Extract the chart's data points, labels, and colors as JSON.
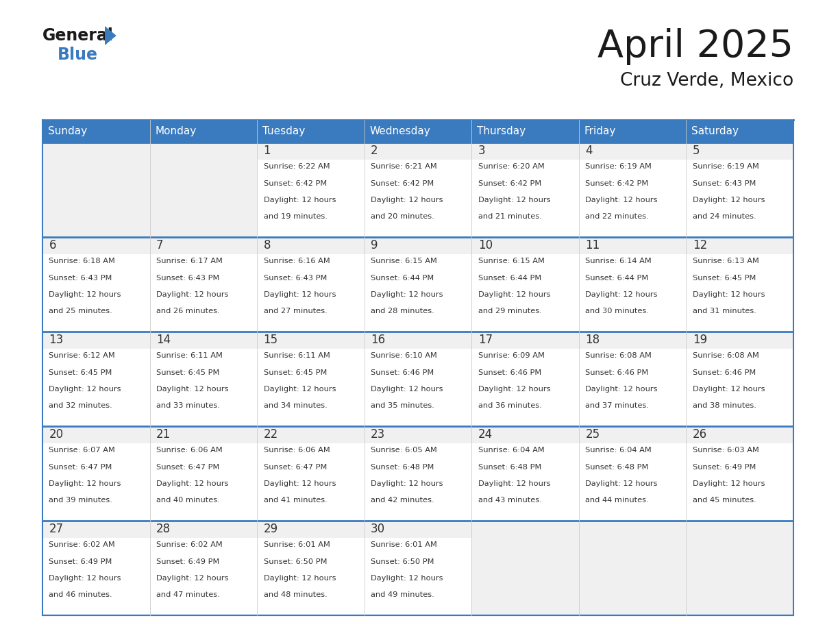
{
  "title": "April 2025",
  "subtitle": "Cruz Verde, Mexico",
  "days_of_week": [
    "Sunday",
    "Monday",
    "Tuesday",
    "Wednesday",
    "Thursday",
    "Friday",
    "Saturday"
  ],
  "header_bg": "#3a7abf",
  "header_text": "#ffffff",
  "cell_bg_gray": "#f0f0f0",
  "cell_bg_white": "#ffffff",
  "border_color": "#3a7abf",
  "grid_line_color": "#cccccc",
  "text_color": "#333333",
  "title_color": "#1a1a1a",
  "logo_black": "#1a1a1a",
  "logo_blue": "#3a7abf",
  "calendar_data": [
    [
      null,
      null,
      {
        "day": 1,
        "sunrise": "6:22 AM",
        "sunset": "6:42 PM",
        "daylight_hours": 12,
        "daylight_minutes": 19
      },
      {
        "day": 2,
        "sunrise": "6:21 AM",
        "sunset": "6:42 PM",
        "daylight_hours": 12,
        "daylight_minutes": 20
      },
      {
        "day": 3,
        "sunrise": "6:20 AM",
        "sunset": "6:42 PM",
        "daylight_hours": 12,
        "daylight_minutes": 21
      },
      {
        "day": 4,
        "sunrise": "6:19 AM",
        "sunset": "6:42 PM",
        "daylight_hours": 12,
        "daylight_minutes": 22
      },
      {
        "day": 5,
        "sunrise": "6:19 AM",
        "sunset": "6:43 PM",
        "daylight_hours": 12,
        "daylight_minutes": 24
      }
    ],
    [
      {
        "day": 6,
        "sunrise": "6:18 AM",
        "sunset": "6:43 PM",
        "daylight_hours": 12,
        "daylight_minutes": 25
      },
      {
        "day": 7,
        "sunrise": "6:17 AM",
        "sunset": "6:43 PM",
        "daylight_hours": 12,
        "daylight_minutes": 26
      },
      {
        "day": 8,
        "sunrise": "6:16 AM",
        "sunset": "6:43 PM",
        "daylight_hours": 12,
        "daylight_minutes": 27
      },
      {
        "day": 9,
        "sunrise": "6:15 AM",
        "sunset": "6:44 PM",
        "daylight_hours": 12,
        "daylight_minutes": 28
      },
      {
        "day": 10,
        "sunrise": "6:15 AM",
        "sunset": "6:44 PM",
        "daylight_hours": 12,
        "daylight_minutes": 29
      },
      {
        "day": 11,
        "sunrise": "6:14 AM",
        "sunset": "6:44 PM",
        "daylight_hours": 12,
        "daylight_minutes": 30
      },
      {
        "day": 12,
        "sunrise": "6:13 AM",
        "sunset": "6:45 PM",
        "daylight_hours": 12,
        "daylight_minutes": 31
      }
    ],
    [
      {
        "day": 13,
        "sunrise": "6:12 AM",
        "sunset": "6:45 PM",
        "daylight_hours": 12,
        "daylight_minutes": 32
      },
      {
        "day": 14,
        "sunrise": "6:11 AM",
        "sunset": "6:45 PM",
        "daylight_hours": 12,
        "daylight_minutes": 33
      },
      {
        "day": 15,
        "sunrise": "6:11 AM",
        "sunset": "6:45 PM",
        "daylight_hours": 12,
        "daylight_minutes": 34
      },
      {
        "day": 16,
        "sunrise": "6:10 AM",
        "sunset": "6:46 PM",
        "daylight_hours": 12,
        "daylight_minutes": 35
      },
      {
        "day": 17,
        "sunrise": "6:09 AM",
        "sunset": "6:46 PM",
        "daylight_hours": 12,
        "daylight_minutes": 36
      },
      {
        "day": 18,
        "sunrise": "6:08 AM",
        "sunset": "6:46 PM",
        "daylight_hours": 12,
        "daylight_minutes": 37
      },
      {
        "day": 19,
        "sunrise": "6:08 AM",
        "sunset": "6:46 PM",
        "daylight_hours": 12,
        "daylight_minutes": 38
      }
    ],
    [
      {
        "day": 20,
        "sunrise": "6:07 AM",
        "sunset": "6:47 PM",
        "daylight_hours": 12,
        "daylight_minutes": 39
      },
      {
        "day": 21,
        "sunrise": "6:06 AM",
        "sunset": "6:47 PM",
        "daylight_hours": 12,
        "daylight_minutes": 40
      },
      {
        "day": 22,
        "sunrise": "6:06 AM",
        "sunset": "6:47 PM",
        "daylight_hours": 12,
        "daylight_minutes": 41
      },
      {
        "day": 23,
        "sunrise": "6:05 AM",
        "sunset": "6:48 PM",
        "daylight_hours": 12,
        "daylight_minutes": 42
      },
      {
        "day": 24,
        "sunrise": "6:04 AM",
        "sunset": "6:48 PM",
        "daylight_hours": 12,
        "daylight_minutes": 43
      },
      {
        "day": 25,
        "sunrise": "6:04 AM",
        "sunset": "6:48 PM",
        "daylight_hours": 12,
        "daylight_minutes": 44
      },
      {
        "day": 26,
        "sunrise": "6:03 AM",
        "sunset": "6:49 PM",
        "daylight_hours": 12,
        "daylight_minutes": 45
      }
    ],
    [
      {
        "day": 27,
        "sunrise": "6:02 AM",
        "sunset": "6:49 PM",
        "daylight_hours": 12,
        "daylight_minutes": 46
      },
      {
        "day": 28,
        "sunrise": "6:02 AM",
        "sunset": "6:49 PM",
        "daylight_hours": 12,
        "daylight_minutes": 47
      },
      {
        "day": 29,
        "sunrise": "6:01 AM",
        "sunset": "6:50 PM",
        "daylight_hours": 12,
        "daylight_minutes": 48
      },
      {
        "day": 30,
        "sunrise": "6:01 AM",
        "sunset": "6:50 PM",
        "daylight_hours": 12,
        "daylight_minutes": 49
      },
      null,
      null,
      null
    ]
  ]
}
